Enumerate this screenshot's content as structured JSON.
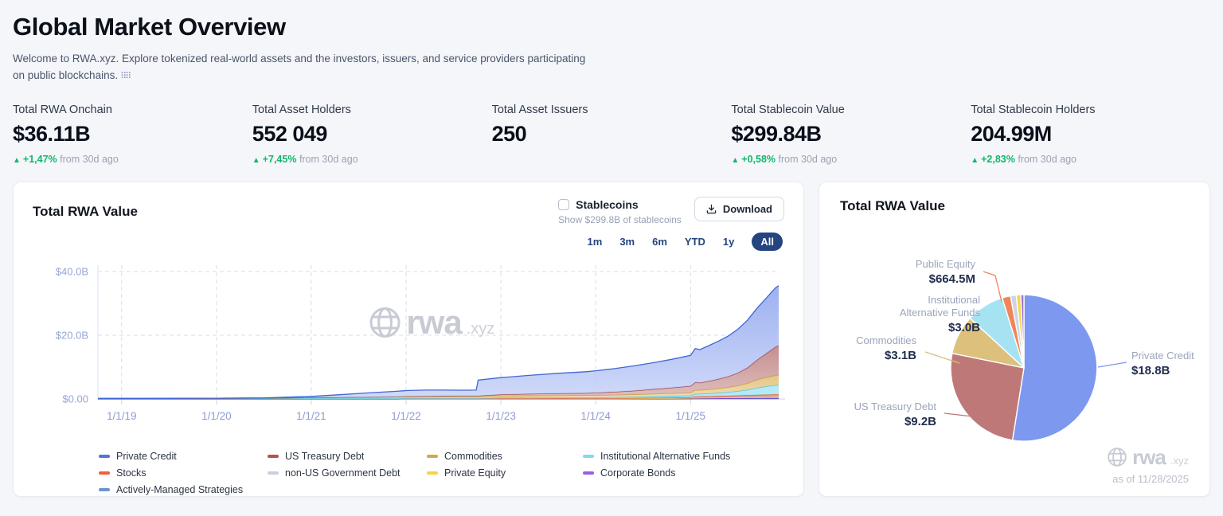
{
  "page": {
    "title": "Global Market Overview",
    "subtitle": "Welcome to RWA.xyz. Explore tokenized real-world assets and the investors, issuers, and service providers participating on public blockchains.",
    "subtitle_icon": "⠿⠿"
  },
  "stats": [
    {
      "label": "Total RWA Onchain",
      "value": "$36.11B",
      "arrow": "▲",
      "change_pct": "+1,47%",
      "change_note": "from 30d ago"
    },
    {
      "label": "Total Asset Holders",
      "value": "552 049",
      "arrow": "▲",
      "change_pct": "+7,45%",
      "change_note": "from 30d ago"
    },
    {
      "label": "Total Asset Issuers",
      "value": "250",
      "arrow": "",
      "change_pct": "",
      "change_note": ""
    },
    {
      "label": "Total Stablecoin Value",
      "value": "$299.84B",
      "arrow": "▲",
      "change_pct": "+0,58%",
      "change_note": "from 30d ago"
    },
    {
      "label": "Total Stablecoin Holders",
      "value": "204.99M",
      "arrow": "▲",
      "change_pct": "+2,83%",
      "change_note": "from 30d ago"
    }
  ],
  "left_card": {
    "title": "Total RWA Value",
    "stablecoins_label": "Stablecoins",
    "stablecoins_sub": "Show $299.8B of stablecoins",
    "download_label": "Download",
    "ranges": [
      "1m",
      "3m",
      "6m",
      "YTD",
      "1y",
      "All"
    ],
    "active_range": "All",
    "watermark": "rwa",
    "watermark_suffix": ".xyz"
  },
  "right_card": {
    "watermark": "rwa",
    "watermark_suffix": ".xyz",
    "as_of": "as of 11/28/2025"
  },
  "chart_data": [
    {
      "type": "area",
      "title": "Total RWA Value",
      "unit": "USD billions",
      "x": [
        2018.75,
        2019,
        2019.5,
        2020,
        2020.5,
        2021,
        2021.3,
        2021.6,
        2021.9,
        2022,
        2022.2,
        2022.4,
        2022.6,
        2022.74,
        2022.76,
        2023,
        2023.3,
        2023.6,
        2023.9,
        2024,
        2024.2,
        2024.4,
        2024.6,
        2024.8,
        2025,
        2025.05,
        2025.1,
        2025.2,
        2025.3,
        2025.4,
        2025.5,
        2025.6,
        2025.7,
        2025.8,
        2025.9,
        2025.93
      ],
      "x_ticks": [
        "1/1/19",
        "1/1/20",
        "1/1/21",
        "1/1/22",
        "1/1/23",
        "1/1/24",
        "1/1/25"
      ],
      "x_tick_values": [
        2019,
        2020,
        2021,
        2022,
        2023,
        2024,
        2025
      ],
      "y_ticks": [
        "$0.00",
        "$20.0B",
        "$40.0B"
      ],
      "y_tick_values": [
        0,
        20,
        40
      ],
      "ylim": [
        0,
        42
      ],
      "grid": true,
      "legend_position": "bottom",
      "stack_order": [
        "Actively-Managed Strategies",
        "Corporate Bonds",
        "Private Equity",
        "non-US Government Debt",
        "Stocks",
        "Institutional Alternative Funds",
        "Commodities",
        "US Treasury Debt",
        "Private Credit"
      ],
      "series": [
        {
          "name": "Private Credit",
          "swatch": "#4f74e0",
          "stroke": "#4166d5",
          "fill": "#8fa6ee",
          "fill2": "#c9d4f8",
          "values": [
            0,
            0,
            0,
            0.02,
            0.05,
            0.35,
            0.8,
            1.3,
            1.7,
            1.8,
            1.9,
            1.85,
            1.8,
            1.8,
            4.9,
            5.3,
            5.8,
            6.3,
            6.7,
            6.9,
            7.3,
            7.8,
            8.3,
            8.9,
            9.6,
            10.6,
            10.4,
            11.2,
            11.9,
            12.7,
            13.7,
            14.9,
            16.2,
            17.4,
            18.6,
            18.8
          ]
        },
        {
          "name": "US Treasury Debt",
          "swatch": "#b05454",
          "stroke": "#9e4444",
          "fill": "#bd7f7f",
          "fill2": "#dcb6b6",
          "values": [
            0,
            0,
            0,
            0,
            0,
            0.02,
            0.03,
            0.05,
            0.08,
            0.1,
            0.12,
            0.15,
            0.18,
            0.2,
            0.22,
            0.45,
            0.55,
            0.65,
            0.72,
            0.78,
            0.95,
            1.15,
            1.45,
            1.75,
            2.1,
            2.4,
            2.3,
            2.6,
            3,
            3.4,
            4,
            4.9,
            6.2,
            7.5,
            9,
            9.2
          ]
        },
        {
          "name": "Commodities",
          "swatch": "#d2a84c",
          "stroke": "#cfa23f",
          "fill": "#e0bd74",
          "fill2": "#eed9a6",
          "values": [
            0,
            0,
            0.01,
            0.04,
            0.1,
            0.22,
            0.3,
            0.36,
            0.42,
            0.45,
            0.48,
            0.5,
            0.5,
            0.5,
            0.5,
            0.55,
            0.6,
            0.63,
            0.65,
            0.66,
            0.7,
            0.75,
            0.8,
            0.85,
            0.9,
            1.25,
            1.2,
            1.3,
            1.4,
            1.55,
            1.75,
            2.05,
            2.55,
            2.85,
            3.05,
            3.1
          ]
        },
        {
          "name": "Institutional Alternative Funds",
          "swatch": "#7fdbee",
          "stroke": "#49cae4",
          "fill": "#a9e7f5",
          "fill2": "#a9e7f5",
          "values": [
            0.15,
            0.15,
            0.16,
            0.17,
            0.18,
            0.2,
            0.2,
            0.2,
            0.2,
            0.2,
            0.2,
            0.2,
            0.2,
            0.2,
            0.2,
            0.25,
            0.28,
            0.3,
            0.3,
            0.3,
            0.35,
            0.4,
            0.45,
            0.5,
            0.55,
            0.8,
            0.8,
            0.9,
            1,
            1.15,
            1.35,
            1.65,
            2.2,
            2.6,
            2.9,
            3
          ]
        },
        {
          "name": "Stocks",
          "swatch": "#f0603a",
          "stroke": "#e65c33",
          "fill": "#f08a62",
          "fill2": "#f08a62",
          "values": [
            0,
            0,
            0,
            0,
            0,
            0,
            0,
            0,
            0,
            0,
            0,
            0,
            0,
            0,
            0,
            0,
            0,
            0,
            0,
            0,
            0.02,
            0.03,
            0.05,
            0.08,
            0.1,
            0.3,
            0.3,
            0.32,
            0.35,
            0.38,
            0.42,
            0.46,
            0.5,
            0.55,
            0.6,
            0.6
          ]
        },
        {
          "name": "non-US Government Debt",
          "swatch": "#c6d0e2",
          "stroke": "#b6c2d8",
          "fill": "#dae1ee",
          "fill2": "#dae1ee",
          "values": [
            0,
            0,
            0,
            0,
            0,
            0,
            0,
            0,
            0,
            0,
            0,
            0,
            0,
            0,
            0,
            0.05,
            0.06,
            0.08,
            0.09,
            0.1,
            0.1,
            0.12,
            0.12,
            0.14,
            0.15,
            0.15,
            0.15,
            0.16,
            0.16,
            0.17,
            0.18,
            0.18,
            0.19,
            0.2,
            0.2,
            0.2
          ]
        },
        {
          "name": "Private Equity",
          "swatch": "#f2d43f",
          "stroke": "#e7c83b",
          "fill": "#f3dc6e",
          "fill2": "#f3dc6e",
          "values": [
            0,
            0,
            0,
            0,
            0,
            0,
            0,
            0,
            0,
            0,
            0,
            0,
            0,
            0,
            0,
            0,
            0,
            0,
            0,
            0,
            0,
            0,
            0.05,
            0.08,
            0.1,
            0.12,
            0.12,
            0.15,
            0.18,
            0.2,
            0.25,
            0.28,
            0.3,
            0.32,
            0.35,
            0.35
          ]
        },
        {
          "name": "Corporate Bonds",
          "swatch": "#9a5fe0",
          "stroke": "#7a41d6",
          "fill": "#9a6ce2",
          "fill2": "#9a6ce2",
          "values": [
            0,
            0,
            0,
            0,
            0,
            0,
            0,
            0,
            0,
            0.08,
            0.08,
            0.08,
            0.08,
            0.08,
            0.08,
            0.1,
            0.1,
            0.1,
            0.1,
            0.1,
            0.1,
            0.12,
            0.12,
            0.12,
            0.12,
            0.12,
            0.14,
            0.14,
            0.15,
            0.15,
            0.16,
            0.17,
            0.18,
            0.19,
            0.2,
            0.2
          ]
        },
        {
          "name": "Actively-Managed Strategies",
          "swatch": "#6d95c9",
          "stroke": "#4a69c9",
          "fill": "#7490d8",
          "fill2": "#7490d8",
          "values": [
            0,
            0,
            0,
            0,
            0,
            0,
            0,
            0,
            0,
            0,
            0,
            0,
            0,
            0,
            0,
            0,
            0,
            0,
            0,
            0,
            0,
            0,
            0,
            0,
            0.05,
            0.08,
            0.08,
            0.08,
            0.09,
            0.09,
            0.1,
            0.1,
            0.1,
            0.1,
            0.1,
            0.1
          ]
        }
      ]
    },
    {
      "type": "pie",
      "title": "Total RWA Value",
      "slices": [
        {
          "name": "Private Credit",
          "value_b": 18.8,
          "label": "$18.8B",
          "color": "#7d99ef"
        },
        {
          "name": "US Treasury Debt",
          "value_b": 9.2,
          "label": "$9.2B",
          "color": "#bf7878"
        },
        {
          "name": "Commodities",
          "value_b": 3.1,
          "label": "$3.1B",
          "color": "#dcc07c"
        },
        {
          "name": "Institutional Alternative Funds",
          "value_b": 3.0,
          "label": "$3.0B",
          "color": "#a5e3f3"
        },
        {
          "name": "Public Equity",
          "value_b": 0.6645,
          "label": "$664.5M",
          "color": "#f0855a"
        },
        {
          "name": "non-US Government Debt",
          "value_b": 0.45,
          "label": "",
          "color": "#cdd5e3"
        },
        {
          "name": "Private Equity",
          "value_b": 0.35,
          "label": "",
          "color": "#f2d84f"
        },
        {
          "name": "Corporate Bonds",
          "value_b": 0.25,
          "label": "",
          "color": "#9a6fe0"
        }
      ]
    }
  ]
}
